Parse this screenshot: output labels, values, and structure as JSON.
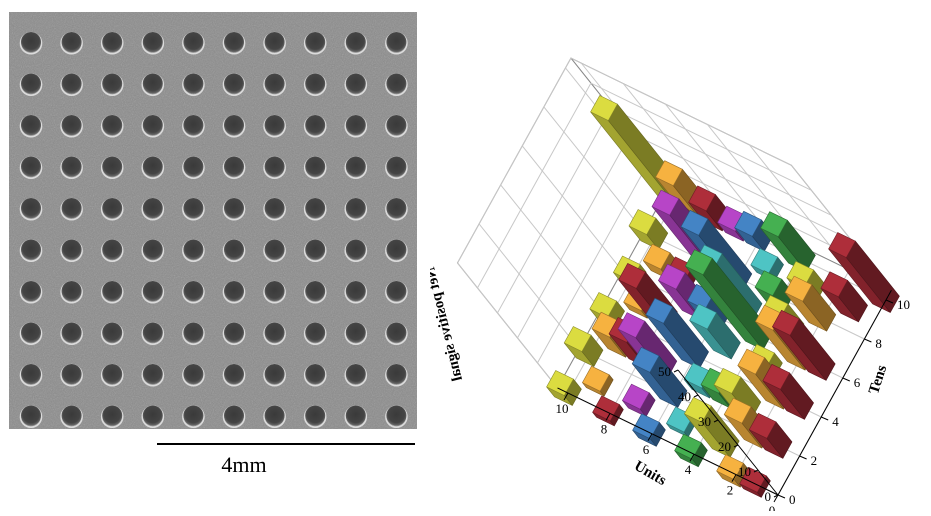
{
  "sem_image": {
    "grid_rows": 10,
    "grid_cols": 10,
    "scale_bar_label": "4mm"
  },
  "chart_data": {
    "type": "bar3d",
    "zlabel": "Net positive signal",
    "xlabel": "Units",
    "ylabel": "Tens",
    "zlim": [
      0,
      50
    ],
    "z_ticks": [
      "0",
      "10",
      "20",
      "30",
      "40",
      "50"
    ],
    "x_ticks": [
      "0",
      "2",
      "4",
      "6",
      "8",
      "10"
    ],
    "y_ticks": [
      "0",
      "2",
      "4",
      "6",
      "8",
      "10"
    ],
    "grid": true,
    "bars": [
      {
        "units": 10,
        "tens": 0,
        "value": 4,
        "color": "#c7c83a"
      },
      {
        "units": 10,
        "tens": 2,
        "value": 6,
        "color": "#c7c83a"
      },
      {
        "units": 10,
        "tens": 4,
        "value": 4,
        "color": "#c7c83a"
      },
      {
        "units": 10,
        "tens": 6,
        "value": 3,
        "color": "#c7c83a"
      },
      {
        "units": 10,
        "tens": 8,
        "value": 6,
        "color": "#c7c83a"
      },
      {
        "units": 10,
        "tens": 10,
        "value": 36,
        "color": "#c7c83a"
      },
      {
        "units": 9,
        "tens": 1,
        "value": 2,
        "color": "#e0a23a"
      },
      {
        "units": 9,
        "tens": 3,
        "value": 8,
        "color": "#e0a23a"
      },
      {
        "units": 9,
        "tens": 5,
        "value": 3,
        "color": "#e0a23a"
      },
      {
        "units": 9,
        "tens": 7,
        "value": 4,
        "color": "#e0a23a"
      },
      {
        "units": 9,
        "tens": 9,
        "value": 6,
        "color": "#e0a23a"
      },
      {
        "units": 9,
        "tens": 10,
        "value": 14,
        "color": "#e0a23a"
      },
      {
        "units": 8,
        "tens": 0,
        "value": 2,
        "color": "#9e2a35"
      },
      {
        "units": 8,
        "tens": 3,
        "value": 10,
        "color": "#9e2a35"
      },
      {
        "units": 8,
        "tens": 5,
        "value": 16,
        "color": "#9e2a35"
      },
      {
        "units": 8,
        "tens": 7,
        "value": 3,
        "color": "#9e2a35"
      },
      {
        "units": 8,
        "tens": 10,
        "value": 8,
        "color": "#9e2a35"
      },
      {
        "units": 7,
        "tens": 1,
        "value": 3,
        "color": "#a63fb5"
      },
      {
        "units": 7,
        "tens": 3,
        "value": 16,
        "color": "#a63fb5"
      },
      {
        "units": 7,
        "tens": 6,
        "value": 12,
        "color": "#a63fb5"
      },
      {
        "units": 7,
        "tens": 8,
        "value": 26,
        "color": "#a63fb5"
      },
      {
        "units": 7,
        "tens": 10,
        "value": 4,
        "color": "#a63fb5"
      },
      {
        "units": 6,
        "tens": 0,
        "value": 3,
        "color": "#3e78b3"
      },
      {
        "units": 6,
        "tens": 2,
        "value": 14,
        "color": "#3e78b3"
      },
      {
        "units": 6,
        "tens": 4,
        "value": 18,
        "color": "#3e78b3"
      },
      {
        "units": 6,
        "tens": 6,
        "value": 8,
        "color": "#3e78b3"
      },
      {
        "units": 6,
        "tens": 8,
        "value": 22,
        "color": "#3e78b3"
      },
      {
        "units": 6,
        "tens": 10,
        "value": 6,
        "color": "#3e78b3"
      },
      {
        "units": 5,
        "tens": 1,
        "value": 2,
        "color": "#47b2b2"
      },
      {
        "units": 5,
        "tens": 3,
        "value": 4,
        "color": "#47b2b2"
      },
      {
        "units": 5,
        "tens": 5,
        "value": 12,
        "color": "#47b2b2"
      },
      {
        "units": 5,
        "tens": 7,
        "value": 20,
        "color": "#47b2b2"
      },
      {
        "units": 5,
        "tens": 9,
        "value": 3,
        "color": "#47b2b2"
      },
      {
        "units": 4,
        "tens": 0,
        "value": 3,
        "color": "#3fa04a"
      },
      {
        "units": 4,
        "tens": 3,
        "value": 6,
        "color": "#3fa04a"
      },
      {
        "units": 4,
        "tens": 6,
        "value": 30,
        "color": "#3fa04a"
      },
      {
        "units": 4,
        "tens": 8,
        "value": 6,
        "color": "#3fa04a"
      },
      {
        "units": 4,
        "tens": 10,
        "value": 14,
        "color": "#3fa04a"
      },
      {
        "units": 3,
        "tens": 1,
        "value": 14,
        "color": "#c7c83a"
      },
      {
        "units": 3,
        "tens": 3,
        "value": 10,
        "color": "#c7c83a"
      },
      {
        "units": 3,
        "tens": 5,
        "value": 4,
        "color": "#c7c83a"
      },
      {
        "units": 3,
        "tens": 7,
        "value": 8,
        "color": "#c7c83a"
      },
      {
        "units": 3,
        "tens": 9,
        "value": 6,
        "color": "#c7c83a"
      },
      {
        "units": 2,
        "tens": 0,
        "value": 3,
        "color": "#e0a23a"
      },
      {
        "units": 2,
        "tens": 2,
        "value": 10,
        "color": "#e0a23a"
      },
      {
        "units": 2,
        "tens": 4,
        "value": 14,
        "color": "#e0a23a"
      },
      {
        "units": 2,
        "tens": 6,
        "value": 16,
        "color": "#e0a23a"
      },
      {
        "units": 2,
        "tens": 8,
        "value": 12,
        "color": "#e0a23a"
      },
      {
        "units": 1,
        "tens": 0,
        "value": 2,
        "color": "#9e2a35"
      },
      {
        "units": 1,
        "tens": 2,
        "value": 8,
        "color": "#9e2a35"
      },
      {
        "units": 1,
        "tens": 4,
        "value": 12,
        "color": "#9e2a35"
      },
      {
        "units": 1,
        "tens": 6,
        "value": 18,
        "color": "#9e2a35"
      },
      {
        "units": 1,
        "tens": 9,
        "value": 10,
        "color": "#9e2a35"
      },
      {
        "units": 0,
        "tens": 10,
        "value": 22,
        "color": "#9e2a35"
      }
    ]
  }
}
